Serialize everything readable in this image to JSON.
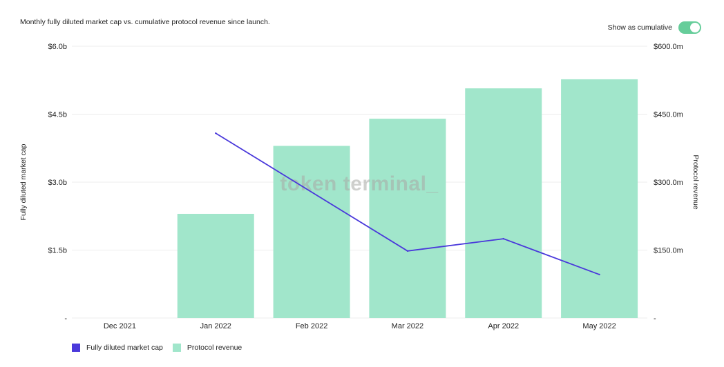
{
  "subtitle": "Monthly fully diluted market cap vs. cumulative protocol revenue since launch.",
  "toggle": {
    "label": "Show as cumulative",
    "on": true,
    "color": "#66cd9a"
  },
  "watermark": "token terminal_",
  "colors": {
    "bar": "#a1e6cb",
    "line": "#4a39db",
    "grid": "#ececec"
  },
  "chart_data": {
    "type": "bar",
    "categories": [
      "Dec 2021",
      "Jan 2022",
      "Feb 2022",
      "Mar 2022",
      "Apr 2022",
      "May 2022"
    ],
    "series": [
      {
        "name": "Fully diluted market cap",
        "type": "line",
        "axis": "left",
        "unit": "$b",
        "values": [
          null,
          4.08,
          null,
          1.48,
          1.75,
          0.96
        ]
      },
      {
        "name": "Protocol revenue",
        "type": "bar",
        "axis": "right",
        "unit": "$m",
        "values": [
          0,
          230,
          380,
          440,
          507,
          527
        ]
      }
    ],
    "ylabel": "Fully diluted market cap",
    "y2label": "Protocol revenue",
    "ylim": [
      0,
      6.0
    ],
    "y2lim": [
      0,
      600
    ],
    "yticks": [
      "-",
      "$1.5b",
      "$3.0b",
      "$4.5b",
      "$6.0b"
    ],
    "y2ticks": [
      "-",
      "$150.0m",
      "$300.0m",
      "$450.0m",
      "$600.0m"
    ],
    "grid": true,
    "legend_position": "bottom-left"
  }
}
